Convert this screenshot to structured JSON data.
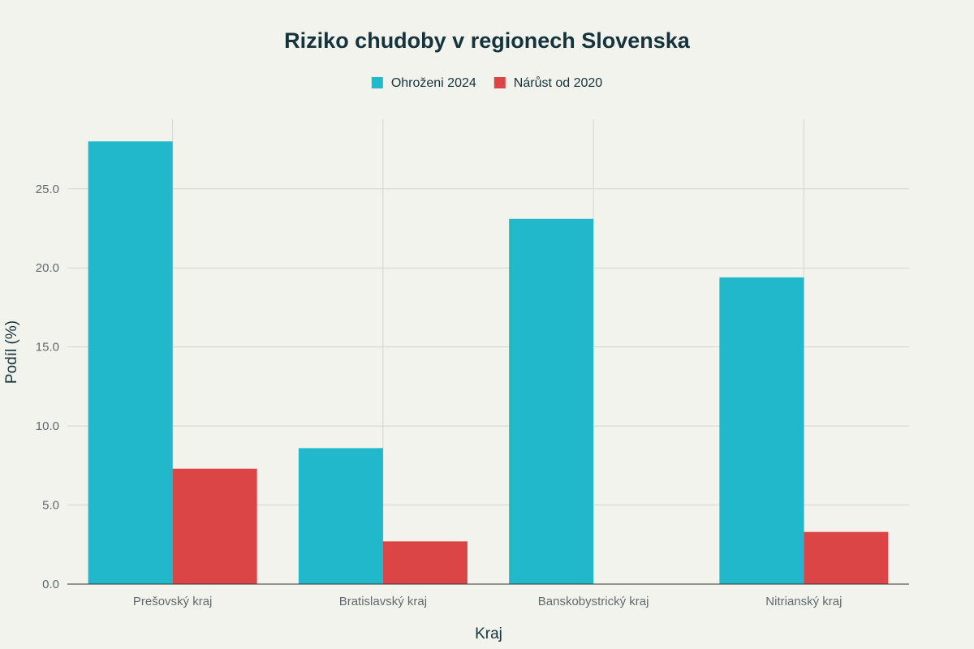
{
  "chart_data": {
    "type": "bar",
    "title": "Riziko chudoby v regionech Slovenska",
    "xlabel": "Kraj",
    "ylabel": "Podíl (%)",
    "categories": [
      "Prešovský kraj",
      "Bratislavský kraj",
      "Banskobystrický kraj",
      "Nitrianský kraj"
    ],
    "series": [
      {
        "name": "Ohroženi 2024",
        "color": "#22b8cc",
        "values": [
          28.0,
          8.6,
          23.1,
          19.4
        ]
      },
      {
        "name": "Nárůst od 2020",
        "color": "#db4546",
        "values": [
          7.3,
          2.7,
          null,
          3.3
        ]
      }
    ],
    "ylim": [
      0,
      29.4
    ],
    "yticks": [
      0,
      5,
      10,
      15,
      20,
      25
    ],
    "ytick_labels": [
      "0.0",
      "5.0",
      "10.0",
      "15.0",
      "20.0",
      "25.0"
    ],
    "grid": true,
    "legend_position": "top-center"
  }
}
